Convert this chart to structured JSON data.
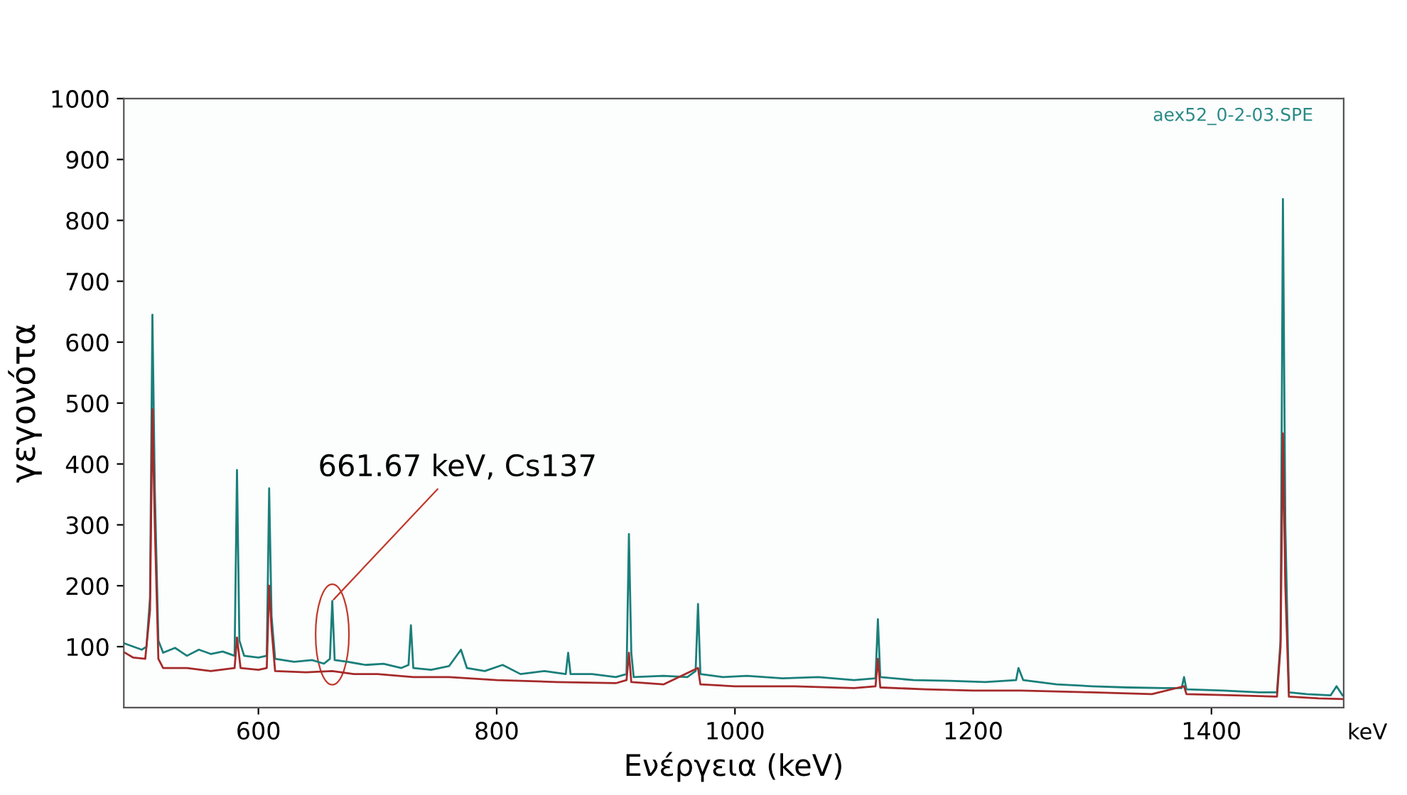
{
  "chart_data": {
    "type": "line",
    "xlabel": "Ενέργεια (keV)",
    "ylabel": "γεγονότα",
    "xlim": [
      487,
      1511
    ],
    "ylim": [
      0,
      1000
    ],
    "xticks": [
      600,
      800,
      1000,
      1200,
      1400
    ],
    "yticks": [
      100,
      200,
      300,
      400,
      500,
      600,
      700,
      800,
      900,
      1000
    ],
    "grid": false,
    "legend": false,
    "marker": "none",
    "line_style": "solid",
    "annotations": [
      {
        "text": "661.67 keV, Cs137",
        "x": 662,
        "y": 175
      },
      "aex52_0-2-03.SPE",
      "keV"
    ],
    "series": [
      {
        "color": "#1a7f7a",
        "x": [
          488,
          495,
          502,
          506,
          509,
          511,
          513,
          516,
          520,
          530,
          540,
          550,
          560,
          570,
          580,
          582,
          584,
          588,
          600,
          607,
          609,
          611,
          614,
          630,
          645,
          655,
          660,
          662,
          664,
          675,
          690,
          705,
          720,
          726,
          728,
          730,
          745,
          760,
          770,
          775,
          790,
          805,
          820,
          840,
          858,
          860,
          862,
          880,
          900,
          909,
          911,
          913,
          915,
          940,
          960,
          967,
          969,
          971,
          990,
          1010,
          1040,
          1070,
          1100,
          1118,
          1120,
          1122,
          1150,
          1180,
          1210,
          1236,
          1238,
          1242,
          1270,
          1300,
          1330,
          1360,
          1375,
          1377,
          1379,
          1410,
          1440,
          1455,
          1458,
          1460,
          1462,
          1465,
          1480,
          1500,
          1505,
          1510
        ],
        "values": [
          105,
          100,
          95,
          100,
          180,
          645,
          360,
          110,
          90,
          98,
          85,
          95,
          88,
          92,
          85,
          390,
          110,
          85,
          82,
          85,
          360,
          150,
          80,
          75,
          78,
          72,
          80,
          175,
          78,
          75,
          70,
          72,
          65,
          70,
          135,
          65,
          62,
          68,
          95,
          65,
          60,
          70,
          55,
          60,
          55,
          90,
          55,
          55,
          50,
          55,
          285,
          90,
          50,
          52,
          50,
          60,
          170,
          55,
          50,
          52,
          48,
          50,
          45,
          48,
          145,
          50,
          45,
          44,
          42,
          45,
          65,
          45,
          38,
          35,
          33,
          32,
          32,
          50,
          30,
          28,
          25,
          25,
          110,
          835,
          300,
          25,
          22,
          20,
          35,
          20
        ]
      },
      {
        "color": "#a52a2a",
        "x": [
          488,
          495,
          505,
          509,
          511,
          513,
          516,
          520,
          540,
          560,
          580,
          582,
          585,
          600,
          607,
          609,
          611,
          614,
          640,
          662,
          680,
          700,
          730,
          760,
          800,
          850,
          900,
          909,
          911,
          913,
          940,
          969,
          971,
          1000,
          1050,
          1100,
          1118,
          1120,
          1122,
          1160,
          1200,
          1240,
          1300,
          1350,
          1377,
          1379,
          1420,
          1455,
          1458,
          1460,
          1462,
          1465,
          1490,
          1510
        ],
        "values": [
          90,
          82,
          80,
          160,
          490,
          300,
          80,
          65,
          65,
          60,
          65,
          115,
          65,
          62,
          65,
          200,
          130,
          60,
          58,
          60,
          55,
          55,
          50,
          50,
          45,
          42,
          40,
          45,
          90,
          42,
          38,
          65,
          38,
          35,
          35,
          32,
          35,
          80,
          33,
          30,
          28,
          28,
          25,
          22,
          35,
          22,
          20,
          18,
          100,
          450,
          200,
          18,
          15,
          14
        ]
      }
    ]
  }
}
